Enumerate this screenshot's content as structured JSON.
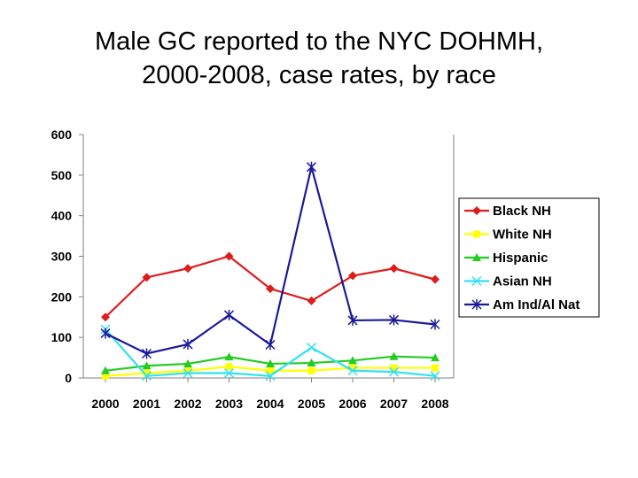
{
  "slide": {
    "title_line1": "Male GC reported to the NYC DOHMH,",
    "title_line2": "2000-2008, case rates, by race"
  },
  "chart_data": {
    "type": "line",
    "title": "Male GC reported to the NYC DOHMH, 2000-2008, case rates, by race",
    "xlabel": "",
    "ylabel": "",
    "categories": [
      "2000",
      "2001",
      "2002",
      "2003",
      "2004",
      "2005",
      "2006",
      "2007",
      "2008"
    ],
    "ylim": [
      0,
      600
    ],
    "yticks": [
      0,
      100,
      200,
      300,
      400,
      500,
      600
    ],
    "grid": false,
    "legend_position": "right",
    "series": [
      {
        "name": "Black NH",
        "color": "#dd1c1c",
        "marker": "diamond",
        "values": [
          150,
          248,
          270,
          300,
          220,
          190,
          252,
          270,
          243
        ]
      },
      {
        "name": "White NH",
        "color": "#ffff00",
        "marker": "square",
        "values": [
          5,
          12,
          18,
          28,
          18,
          18,
          25,
          25,
          25
        ]
      },
      {
        "name": "Hispanic",
        "color": "#22cc22",
        "marker": "triangle",
        "values": [
          18,
          30,
          35,
          52,
          35,
          37,
          43,
          53,
          50
        ]
      },
      {
        "name": "Asian NH",
        "color": "#33e0f0",
        "marker": "x",
        "values": [
          120,
          5,
          12,
          12,
          5,
          75,
          18,
          15,
          5
        ]
      },
      {
        "name": "Am Ind/Al Nat",
        "color": "#1a1a99",
        "marker": "star",
        "values": [
          110,
          60,
          83,
          155,
          82,
          520,
          142,
          143,
          132
        ]
      }
    ]
  }
}
